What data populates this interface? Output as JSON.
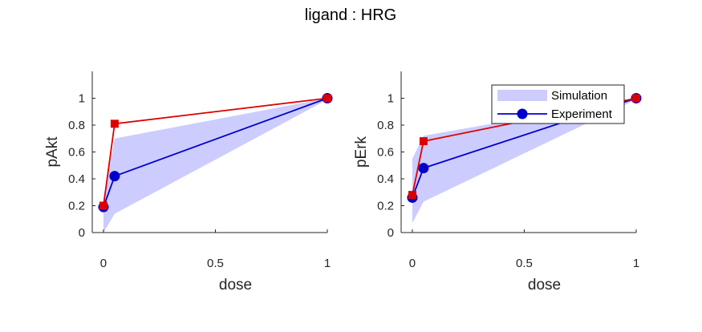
{
  "figure": {
    "title": "ligand : HRG"
  },
  "legend": {
    "entries": [
      {
        "label": "Simulation",
        "kind": "band",
        "color": "#ccccff"
      },
      {
        "label": "Experiment",
        "kind": "line-marker",
        "color": "#0000cc"
      }
    ],
    "location": "top-right of second axes"
  },
  "chart_data": [
    {
      "type": "line",
      "xlabel": "dose",
      "ylabel": "pAkt",
      "xlim": [
        -0.05,
        1.0
      ],
      "ylim": [
        0,
        1.2
      ],
      "xticks": [
        0,
        0.5,
        1
      ],
      "xtick_labels": [
        "0",
        "0.5",
        "1"
      ],
      "yticks": [
        0,
        0.2,
        0.4,
        0.6,
        0.8,
        1
      ],
      "ytick_labels": [
        "0",
        "0.2",
        "0.4",
        "0.6",
        "0.8",
        "1"
      ],
      "grid": false,
      "series": [
        {
          "name": "Simulation",
          "kind": "band",
          "color": "#ccccff",
          "x": [
            0,
            0.05,
            1
          ],
          "upper": [
            0.25,
            0.7,
            1.0
          ],
          "lower": [
            0.0,
            0.14,
            0.99
          ]
        },
        {
          "name": "Experiment",
          "kind": "line-marker",
          "marker": "circle",
          "color": "#0000cc",
          "x": [
            0,
            0.05,
            1
          ],
          "y": [
            0.19,
            0.42,
            1.0
          ]
        },
        {
          "kind": "line-marker",
          "marker": "square",
          "color": "#dd0000",
          "x": [
            0,
            0.05,
            1
          ],
          "y": [
            0.2,
            0.81,
            1.0
          ]
        }
      ]
    },
    {
      "type": "line",
      "xlabel": "dose",
      "ylabel": "pErk",
      "xlim": [
        -0.05,
        1.0
      ],
      "ylim": [
        0,
        1.2
      ],
      "xticks": [
        0,
        0.5,
        1
      ],
      "xtick_labels": [
        "0",
        "0.5",
        "1"
      ],
      "yticks": [
        0,
        0.2,
        0.4,
        0.6,
        0.8,
        1
      ],
      "ytick_labels": [
        "0",
        "0.2",
        "0.4",
        "0.6",
        "0.8",
        "1"
      ],
      "grid": false,
      "series": [
        {
          "name": "Simulation",
          "kind": "band",
          "color": "#ccccff",
          "x": [
            0,
            0.05,
            1
          ],
          "upper": [
            0.55,
            0.72,
            1.0
          ],
          "lower": [
            0.07,
            0.23,
            0.99
          ]
        },
        {
          "name": "Experiment",
          "kind": "line-marker",
          "marker": "circle",
          "color": "#0000cc",
          "x": [
            0,
            0.05,
            1
          ],
          "y": [
            0.26,
            0.48,
            1.0
          ]
        },
        {
          "kind": "line-marker",
          "marker": "square",
          "color": "#dd0000",
          "x": [
            0,
            0.05,
            1
          ],
          "y": [
            0.28,
            0.68,
            1.0
          ]
        }
      ]
    }
  ]
}
